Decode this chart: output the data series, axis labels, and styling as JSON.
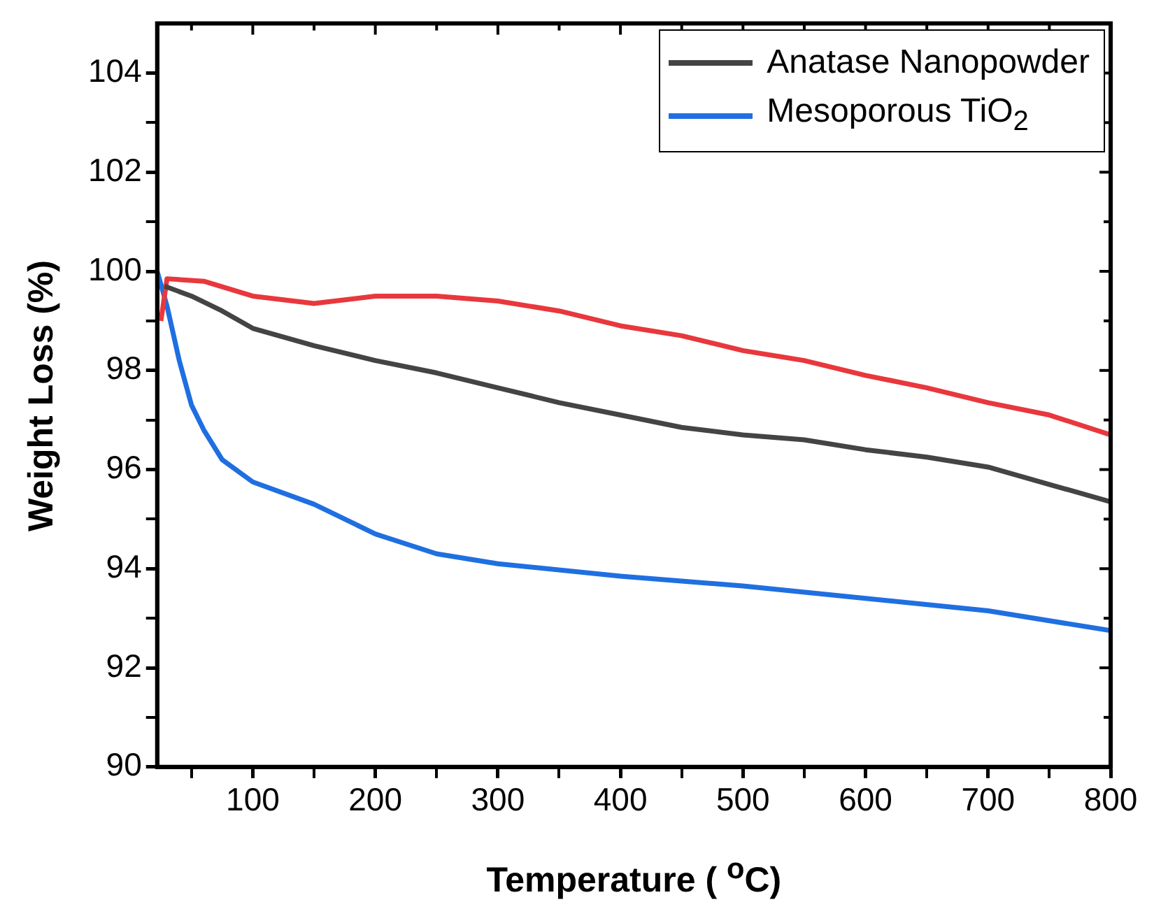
{
  "chart_data": {
    "type": "line",
    "xlabel": "Temperature ( $^{o}$C)",
    "ylabel": "Weight Loss (%)",
    "xlim": [
      22,
      800
    ],
    "ylim": [
      90,
      105
    ],
    "xticks": [
      {
        "value": 50,
        "label": null
      },
      100,
      {
        "value": 150,
        "label": null
      },
      200,
      {
        "value": 250,
        "label": null
      },
      300,
      {
        "value": 350,
        "label": null
      },
      400,
      {
        "value": 450,
        "label": null
      },
      500,
      {
        "value": 550,
        "label": null
      },
      600,
      {
        "value": 650,
        "label": null
      },
      700,
      {
        "value": 750,
        "label": null
      },
      800
    ],
    "yticks": [
      90,
      {
        "value": 91,
        "label": null
      },
      92,
      {
        "value": 93,
        "label": null
      },
      94,
      {
        "value": 95,
        "label": null
      },
      96,
      {
        "value": 97,
        "label": null
      },
      98,
      {
        "value": 99,
        "label": null
      },
      100,
      {
        "value": 101,
        "label": null
      },
      102,
      {
        "value": 103,
        "label": null
      },
      104
    ],
    "grid": false,
    "legend": "top right",
    "marker": "none",
    "line_style": "solid",
    "series": [
      {
        "name": "Anatase Nanopowder",
        "color": "#444444",
        "x": [
          28,
          50,
          75,
          100,
          150,
          200,
          250,
          300,
          350,
          400,
          450,
          500,
          550,
          600,
          650,
          700,
          750,
          800
        ],
        "values": [
          99.7,
          99.5,
          99.2,
          98.85,
          98.5,
          98.2,
          97.95,
          97.65,
          97.35,
          97.1,
          96.85,
          96.7,
          96.6,
          96.4,
          96.25,
          96.05,
          95.7,
          95.35
        ]
      },
      {
        "color": "#e8383d",
        "x": [
          25,
          30,
          60,
          100,
          150,
          200,
          250,
          300,
          350,
          400,
          450,
          500,
          550,
          600,
          650,
          700,
          750,
          800
        ],
        "values": [
          99.0,
          99.85,
          99.8,
          99.5,
          99.35,
          99.5,
          99.5,
          99.4,
          99.2,
          98.9,
          98.7,
          98.4,
          98.2,
          97.9,
          97.65,
          97.35,
          97.1,
          96.7
        ]
      },
      {
        "name": "Mesoporous TiO$_{2}$",
        "color": "#1f6fe0",
        "x": [
          22,
          30,
          40,
          50,
          60,
          75,
          100,
          150,
          200,
          250,
          300,
          400,
          500,
          600,
          700,
          800
        ],
        "values": [
          100.0,
          99.3,
          98.2,
          97.3,
          96.8,
          96.2,
          95.75,
          95.3,
          94.7,
          94.3,
          94.1,
          93.85,
          93.65,
          93.4,
          93.15,
          92.75
        ]
      }
    ]
  }
}
